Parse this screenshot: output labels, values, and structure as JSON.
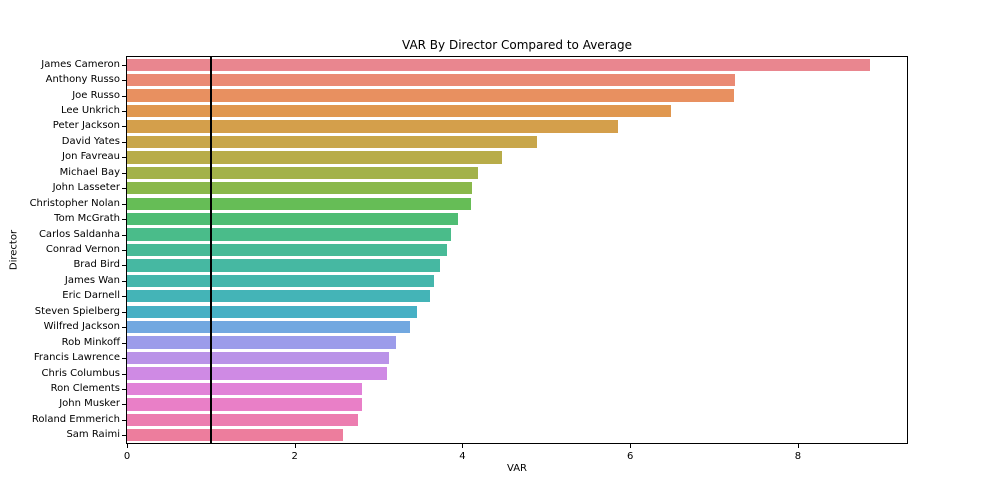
{
  "chart_data": {
    "type": "bar",
    "orientation": "horizontal",
    "title": "VAR By Director Compared to Average",
    "xlabel": "VAR",
    "ylabel": "Director",
    "xlim": [
      0,
      9.3
    ],
    "xticks": [
      0,
      2,
      4,
      6,
      8
    ],
    "grid": false,
    "average_line_x": 1.0,
    "average_line_color": "#000000",
    "categories": [
      "James Cameron",
      "Anthony Russo",
      "Joe Russo",
      "Lee Unkrich",
      "Peter Jackson",
      "David Yates",
      "Jon Favreau",
      "Michael Bay",
      "John Lasseter",
      "Christopher Nolan",
      "Tom McGrath",
      "Carlos Saldanha",
      "Conrad Vernon",
      "Brad Bird",
      "James Wan",
      "Eric Darnell",
      "Steven Spielberg",
      "Wilfred Jackson",
      "Rob Minkoff",
      "Francis Lawrence",
      "Chris Columbus",
      "Ron Clements",
      "John Musker",
      "Roland Emmerich",
      "Sam Raimi"
    ],
    "values": [
      8.86,
      7.25,
      7.24,
      6.49,
      5.85,
      4.89,
      4.47,
      4.19,
      4.11,
      4.1,
      3.95,
      3.86,
      3.81,
      3.73,
      3.66,
      3.61,
      3.46,
      3.37,
      3.21,
      3.12,
      3.1,
      2.8,
      2.8,
      2.76,
      2.57
    ],
    "bar_colors": [
      "#e9868f",
      "#ea8a74",
      "#e89060",
      "#e0974f",
      "#d49f4b",
      "#c8a64a",
      "#b8ac49",
      "#a3b24a",
      "#8ab84b",
      "#66bd56",
      "#4fbd74",
      "#4abc8a",
      "#48ba97",
      "#46b8a2",
      "#45b6ac",
      "#44b4b7",
      "#46b0c4",
      "#72a8e0",
      "#9c9cea",
      "#ba93e8",
      "#cf8ae4",
      "#e182d8",
      "#e97fc7",
      "#ec7db0",
      "#ed7d9d"
    ]
  }
}
